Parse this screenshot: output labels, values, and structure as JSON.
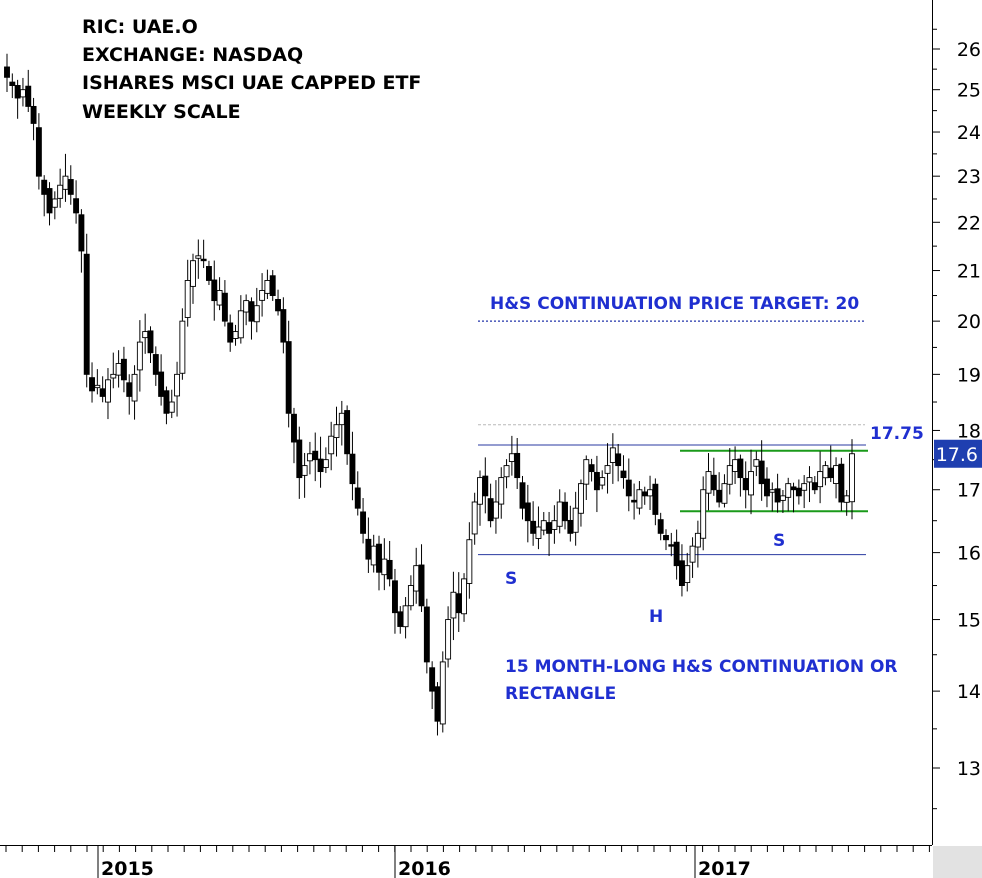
{
  "header": {
    "ric": "RIC: UAE.O",
    "exchange": "EXCHANGE: NASDAQ",
    "name": "ISHARES MSCI UAE CAPPED ETF",
    "scale": "WEEKLY SCALE"
  },
  "annotations": {
    "target_text": "H&S CONTINUATION PRICE TARGET: 20",
    "pattern_text_line1": "15 MONTH-LONG H&S CONTINUATION OR",
    "pattern_text_line2": "RECTANGLE",
    "left_shoulder": "S",
    "head": "H",
    "right_shoulder": "S",
    "level_label": "17.75",
    "last_price": "17.6"
  },
  "colors": {
    "annotation_blue": "#1f2fd0",
    "rectangle_green": "#1a9a1a",
    "neckline_blue": "#2a3aa0",
    "target_blue": "#2233aa",
    "bear_candle": "#000000",
    "bull_candle": "#ffffff",
    "last_price_box": "#1f3fb0"
  },
  "chart_data": {
    "type": "candlestick",
    "title": "",
    "scale": "log",
    "ylim": [
      12.0,
      27.1
    ],
    "y_ticks": [
      "13",
      "14",
      "15",
      "16",
      "17",
      "18",
      "19",
      "20",
      "21",
      "22",
      "23",
      "24",
      "25",
      "26"
    ],
    "x_ticks": [
      "2015",
      "2016",
      "2017"
    ],
    "grid": false,
    "levels": {
      "target": 20,
      "upper_neckline": 17.75,
      "lower_neckline": 15.97,
      "rectangle_top": 17.65,
      "rectangle_bottom": 16.65,
      "faint_upper": 18.1
    },
    "closes": [
      25.3,
      25.1,
      24.8,
      25.0,
      24.6,
      24.2,
      23.0,
      22.6,
      22.2,
      22.5,
      22.8,
      23.0,
      22.6,
      22.2,
      21.4,
      19.0,
      18.7,
      18.8,
      18.6,
      18.9,
      19.0,
      19.2,
      18.9,
      18.6,
      19.0,
      19.6,
      19.8,
      19.4,
      19.0,
      18.6,
      18.3,
      18.5,
      19.0,
      20.0,
      20.8,
      21.2,
      21.3,
      21.2,
      20.8,
      20.4,
      20.6,
      20.0,
      19.6,
      19.8,
      20.2,
      20.4,
      20.0,
      20.3,
      20.6,
      20.8,
      20.5,
      20.2,
      19.6,
      18.3,
      17.8,
      17.2,
      17.4,
      17.6,
      17.5,
      17.3,
      17.5,
      17.9,
      18.1,
      18.3,
      17.6,
      17.1,
      16.7,
      16.3,
      15.9,
      16.1,
      15.7,
      15.9,
      15.6,
      15.1,
      14.9,
      15.2,
      15.5,
      15.8,
      15.2,
      14.4,
      14.0,
      13.6,
      14.4,
      15.0,
      15.4,
      15.1,
      15.6,
      16.2,
      16.8,
      17.2,
      16.9,
      16.5,
      16.8,
      17.2,
      17.4,
      17.6,
      17.2,
      16.7,
      16.5,
      16.3,
      16.4,
      16.5,
      16.3,
      16.5,
      16.8,
      16.5,
      16.3,
      16.7,
      17.1,
      17.5,
      17.3,
      17.0,
      17.2,
      17.4,
      17.7,
      17.4,
      17.2,
      16.9,
      16.8,
      17.0,
      16.9,
      17.0,
      16.6,
      16.3,
      16.2,
      16.1,
      15.8,
      15.5,
      15.8,
      16.1,
      16.3,
      17.0,
      17.3,
      17.0,
      16.8,
      17.1,
      17.4,
      17.5,
      17.2,
      17.0,
      17.3,
      17.5,
      17.1,
      16.9,
      17.0,
      16.8,
      16.9,
      17.1,
      17.0,
      16.9,
      17.1,
      17.2,
      17.0,
      17.3,
      17.4,
      17.2,
      17.4,
      16.8,
      16.9,
      17.6
    ]
  }
}
